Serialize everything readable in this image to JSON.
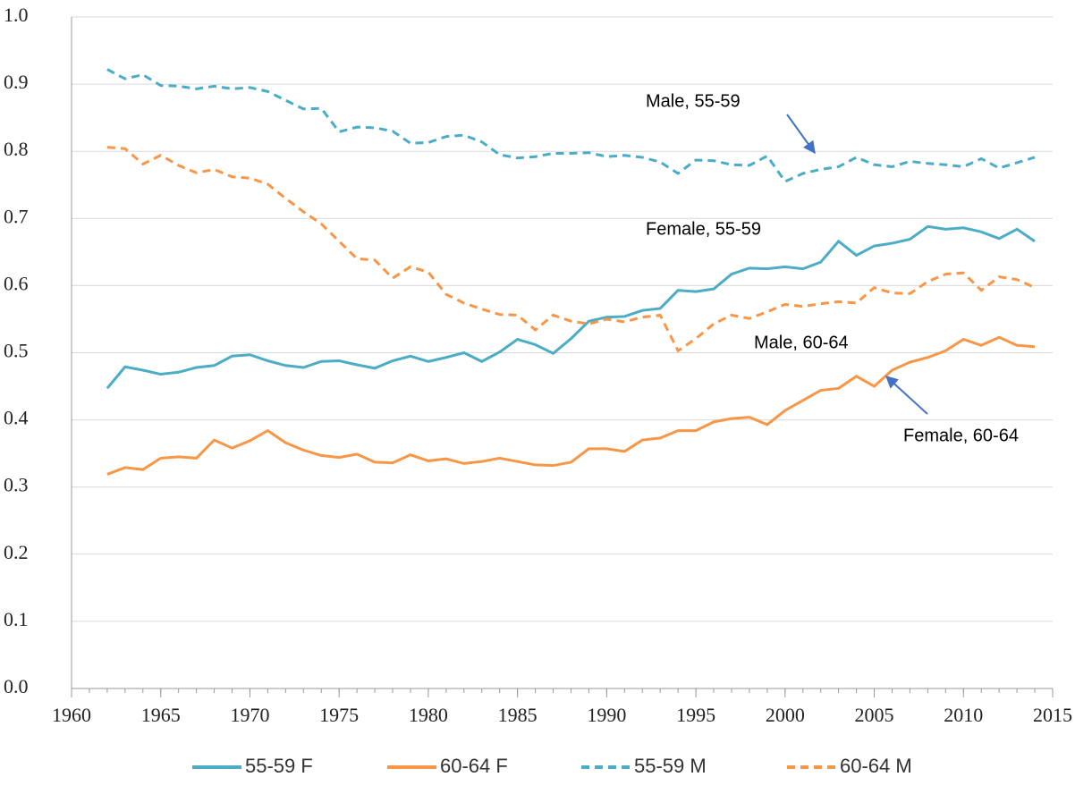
{
  "chart_data": {
    "type": "line",
    "x": [
      1962,
      1963,
      1964,
      1965,
      1966,
      1967,
      1968,
      1969,
      1970,
      1971,
      1972,
      1973,
      1974,
      1975,
      1976,
      1977,
      1978,
      1979,
      1980,
      1981,
      1982,
      1983,
      1984,
      1985,
      1986,
      1987,
      1988,
      1989,
      1990,
      1991,
      1992,
      1993,
      1994,
      1995,
      1996,
      1997,
      1998,
      1999,
      2000,
      2001,
      2002,
      2003,
      2004,
      2005,
      2006,
      2007,
      2008,
      2009,
      2010,
      2011,
      2012,
      2013,
      2014
    ],
    "series": [
      {
        "name": "55-59 F",
        "color": "#4bacc6",
        "dashed": false,
        "values": [
          0.447,
          0.479,
          0.474,
          0.468,
          0.471,
          0.478,
          0.481,
          0.495,
          0.497,
          0.488,
          0.481,
          0.478,
          0.487,
          0.488,
          0.482,
          0.477,
          0.488,
          0.495,
          0.487,
          0.493,
          0.5,
          0.487,
          0.501,
          0.52,
          0.512,
          0.499,
          0.521,
          0.547,
          0.553,
          0.554,
          0.563,
          0.566,
          0.593,
          0.591,
          0.595,
          0.617,
          0.626,
          0.625,
          0.628,
          0.625,
          0.635,
          0.666,
          0.645,
          0.659,
          0.663,
          0.669,
          0.688,
          0.684,
          0.686,
          0.68,
          0.67,
          0.684,
          0.666
        ]
      },
      {
        "name": "60-64 F",
        "color": "#f79646",
        "dashed": false,
        "values": [
          0.319,
          0.329,
          0.326,
          0.343,
          0.345,
          0.343,
          0.37,
          0.358,
          0.369,
          0.384,
          0.366,
          0.355,
          0.347,
          0.344,
          0.349,
          0.337,
          0.336,
          0.348,
          0.339,
          0.342,
          0.335,
          0.338,
          0.343,
          0.338,
          0.333,
          0.332,
          0.337,
          0.357,
          0.357,
          0.353,
          0.37,
          0.373,
          0.384,
          0.384,
          0.397,
          0.402,
          0.404,
          0.393,
          0.414,
          0.429,
          0.444,
          0.447,
          0.465,
          0.45,
          0.474,
          0.486,
          0.493,
          0.503,
          0.52,
          0.511,
          0.523,
          0.511,
          0.509
        ]
      },
      {
        "name": "55-59 M",
        "color": "#4bacc6",
        "dashed": true,
        "values": [
          0.922,
          0.908,
          0.914,
          0.898,
          0.897,
          0.893,
          0.897,
          0.893,
          0.895,
          0.889,
          0.876,
          0.863,
          0.864,
          0.829,
          0.836,
          0.835,
          0.83,
          0.812,
          0.813,
          0.822,
          0.824,
          0.814,
          0.795,
          0.79,
          0.792,
          0.797,
          0.797,
          0.798,
          0.792,
          0.794,
          0.791,
          0.784,
          0.767,
          0.787,
          0.786,
          0.78,
          0.779,
          0.793,
          0.755,
          0.767,
          0.773,
          0.777,
          0.791,
          0.78,
          0.777,
          0.785,
          0.782,
          0.78,
          0.777,
          0.789,
          0.775,
          0.783,
          0.791
        ]
      },
      {
        "name": "60-64 M",
        "color": "#f79646",
        "dashed": true,
        "values": [
          0.806,
          0.804,
          0.781,
          0.794,
          0.779,
          0.768,
          0.773,
          0.762,
          0.76,
          0.751,
          0.73,
          0.71,
          0.692,
          0.666,
          0.64,
          0.638,
          0.611,
          0.628,
          0.62,
          0.587,
          0.574,
          0.565,
          0.557,
          0.556,
          0.534,
          0.556,
          0.547,
          0.543,
          0.55,
          0.546,
          0.553,
          0.556,
          0.503,
          0.521,
          0.543,
          0.556,
          0.551,
          0.561,
          0.572,
          0.569,
          0.573,
          0.576,
          0.574,
          0.597,
          0.589,
          0.588,
          0.606,
          0.617,
          0.619,
          0.593,
          0.613,
          0.609,
          0.597
        ]
      }
    ],
    "xlim": [
      1960,
      2015
    ],
    "xticks": [
      1960,
      1965,
      1970,
      1975,
      1980,
      1985,
      1990,
      1995,
      2000,
      2005,
      2010,
      2015
    ],
    "ylim": [
      0,
      1
    ],
    "yticks": [
      {
        "value": 0,
        "label": "0.0"
      },
      {
        "value": 0.1,
        "label": "0.1"
      },
      {
        "value": 0.2,
        "label": "0.2"
      },
      {
        "value": 0.3,
        "label": "0.3"
      },
      {
        "value": 0.4,
        "label": "0.4"
      },
      {
        "value": 0.5,
        "label": "0.5"
      },
      {
        "value": 0.6,
        "label": "0.6"
      },
      {
        "value": 0.7,
        "label": "0.7"
      },
      {
        "value": 0.8,
        "label": "0.8"
      },
      {
        "value": 0.9,
        "label": "0.9"
      },
      {
        "value": 1,
        "label": "1.0"
      }
    ],
    "grid": true,
    "legend": "bottom",
    "annotations": [
      "Male, 55-59",
      "Female, 55-59",
      "Male, 60-64",
      "Female, 60-64"
    ]
  }
}
